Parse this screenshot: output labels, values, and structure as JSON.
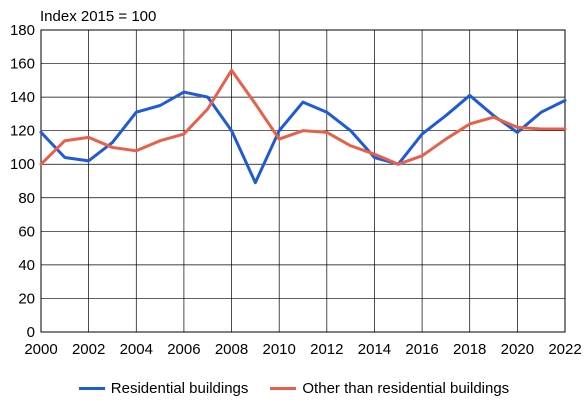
{
  "chart_data": {
    "type": "line",
    "title": "",
    "ylabel": "Index 2015 = 100",
    "xlabel": "",
    "x": [
      2000,
      2001,
      2002,
      2003,
      2004,
      2005,
      2006,
      2007,
      2008,
      2009,
      2010,
      2011,
      2012,
      2013,
      2014,
      2015,
      2016,
      2017,
      2018,
      2019,
      2020,
      2021,
      2022
    ],
    "xticks": [
      "2000",
      "2002",
      "2004",
      "2006",
      "2008",
      "2010",
      "2012",
      "2014",
      "2016",
      "2018",
      "2020",
      "2022"
    ],
    "yticks": [
      "0",
      "20",
      "40",
      "60",
      "80",
      "100",
      "120",
      "140",
      "160",
      "180"
    ],
    "ylim": [
      0,
      180
    ],
    "xlim": [
      2000,
      2022
    ],
    "grid": true,
    "legend_position": "bottom",
    "series": [
      {
        "name": "Residential buildings",
        "color": "#1f5bd6",
        "values": [
          119,
          104,
          102,
          113,
          131,
          135,
          143,
          140,
          120,
          89,
          120,
          137,
          131,
          120,
          104,
          100,
          118,
          129,
          141,
          129,
          119,
          131,
          138
        ]
      },
      {
        "name": "Other than residential buildings",
        "color": "#e8604a",
        "values": [
          100,
          114,
          116,
          110,
          108,
          114,
          118,
          133,
          156,
          136,
          115,
          120,
          119,
          111,
          106,
          100,
          105,
          115,
          124,
          128,
          122,
          121,
          121
        ]
      }
    ]
  }
}
